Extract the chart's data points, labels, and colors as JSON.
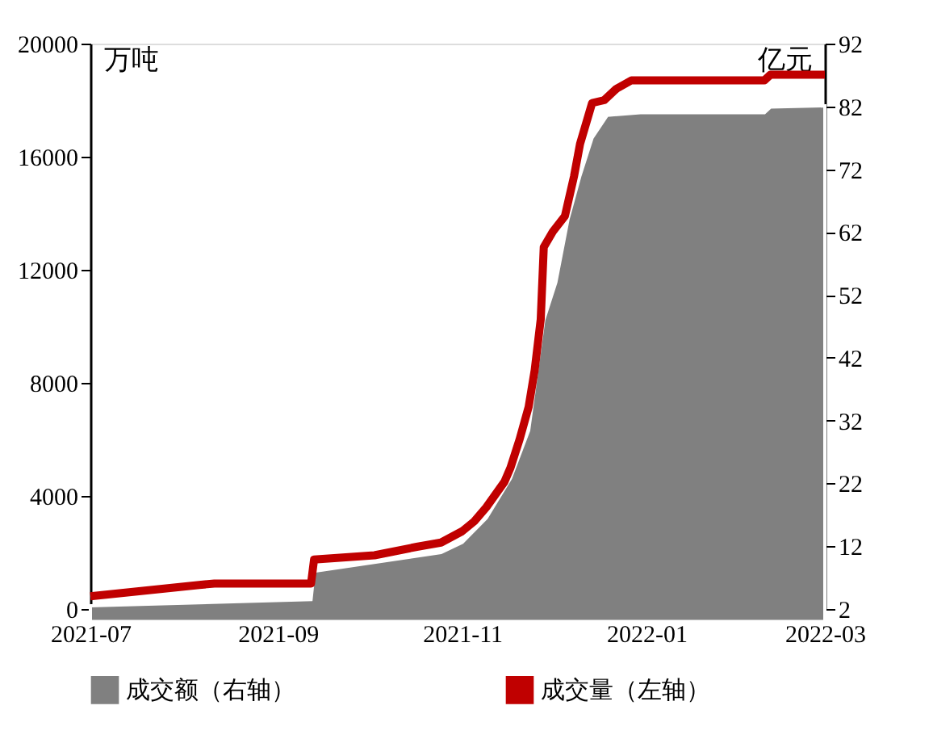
{
  "chart_data": {
    "type": "line",
    "ylabel": "万吨",
    "y2label": "亿元",
    "xlim": [
      "2021-07-01",
      "2022-03-01"
    ],
    "xticks": [
      {
        "value": "2021-07-01",
        "label": "2021-07"
      },
      {
        "value": "2021-09-01",
        "label": "2021-09"
      },
      {
        "value": "2021-11-01",
        "label": "2021-11"
      },
      {
        "value": "2022-01-01",
        "label": "2022-01"
      },
      {
        "value": "2022-03-01",
        "label": "2022-03"
      }
    ],
    "ylim": [
      0,
      20000
    ],
    "yticks": [
      0,
      4000,
      8000,
      12000,
      16000,
      20000
    ],
    "y2lim": [
      2,
      92
    ],
    "y2ticks": [
      2,
      12,
      22,
      32,
      42,
      52,
      62,
      72,
      82,
      92
    ],
    "grid": false,
    "legend": "bottom",
    "series": [
      {
        "name": "成交额（右轴）",
        "type": "area",
        "axis": "y2",
        "color": "#808080",
        "x": [
          "2021-07-01",
          "2021-08-06",
          "2021-09-12",
          "2021-09-13",
          "2021-10-25",
          "2021-11-01",
          "2021-11-09",
          "2021-11-17",
          "2021-11-23",
          "2021-11-28",
          "2021-12-02",
          "2021-12-06",
          "2021-12-10",
          "2021-12-14",
          "2021-12-19",
          "2021-12-30",
          "2022-02-09",
          "2022-02-11",
          "2022-03-01"
        ],
        "values": [
          2.5,
          3,
          3.5,
          8,
          11,
          12.6,
          16.5,
          22.8,
          30.4,
          48,
          54,
          64,
          71,
          77,
          80.6,
          81,
          81,
          81.9,
          82.1
        ]
      },
      {
        "name": "成交量（左轴）",
        "axis": "y",
        "color": "#c00000",
        "x": [
          "2021-07-01",
          "2021-08-06",
          "2021-08-11",
          "2021-09-12",
          "2021-09-13",
          "2021-10-03",
          "2021-10-17",
          "2021-10-25",
          "2021-11-01",
          "2021-11-05",
          "2021-11-09",
          "2021-11-15",
          "2021-11-17",
          "2021-11-20",
          "2021-11-23",
          "2021-11-25",
          "2021-11-27",
          "2021-11-28",
          "2021-12-01",
          "2021-12-05",
          "2021-12-08",
          "2021-12-10",
          "2021-12-14",
          "2021-12-18",
          "2021-12-22",
          "2021-12-27",
          "2022-01-01",
          "2022-02-09",
          "2022-02-11",
          "2022-03-01"
        ],
        "values": [
          450,
          850,
          900,
          900,
          1750,
          1900,
          2200,
          2350,
          2750,
          3100,
          3600,
          4500,
          5000,
          6000,
          7150,
          8450,
          10250,
          12800,
          13350,
          13900,
          15300,
          16450,
          17900,
          18000,
          18400,
          18700,
          18700,
          18700,
          18900,
          18900
        ]
      }
    ]
  }
}
